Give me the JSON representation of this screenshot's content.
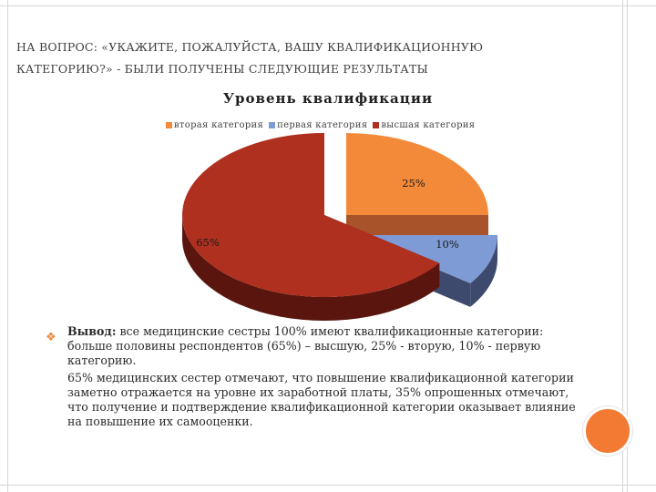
{
  "slide": {
    "title_line1": "На вопрос: «Укажите, пожалуйста, вашу квалификационную",
    "title_line2": "категорию?» - были получены следующие результаты"
  },
  "chart_data": {
    "type": "pie",
    "title": "Уровень квалификации",
    "legend_position": "top",
    "series": [
      {
        "name": "вторая категория",
        "value": 25,
        "label": "25%",
        "color": "#f28a3a",
        "side_color": "#a8532a"
      },
      {
        "name": "первая категория",
        "value": 10,
        "label": "10%",
        "color": "#7f9bd5",
        "side_color": "#3d4a6e"
      },
      {
        "name": "высшая категория",
        "value": 65,
        "label": "65%",
        "color": "#b0301f",
        "side_color": "#5a160e"
      }
    ]
  },
  "conclusion": {
    "lead": "Вывод:",
    "text1": " все медицинские сестры 100% имеют квалификационные категории: больше половины респондентов (65%) – высшую, 25% - вторую, 10% - первую категорию.",
    "text2": "65% медицинских сестер отмечают, что повышение квалификационной категории заметно отражается на уровне их заработной платы, 35% опрошенных отмечают, что получение и подтверждение квалификационной категории оказывает влияние на повышение их самооценки."
  },
  "icons": {
    "bullet": "bullet-icon",
    "decoration": "orange-circle-decoration"
  },
  "colors": {
    "accent": "#f27a33",
    "title_text": "#404040"
  }
}
